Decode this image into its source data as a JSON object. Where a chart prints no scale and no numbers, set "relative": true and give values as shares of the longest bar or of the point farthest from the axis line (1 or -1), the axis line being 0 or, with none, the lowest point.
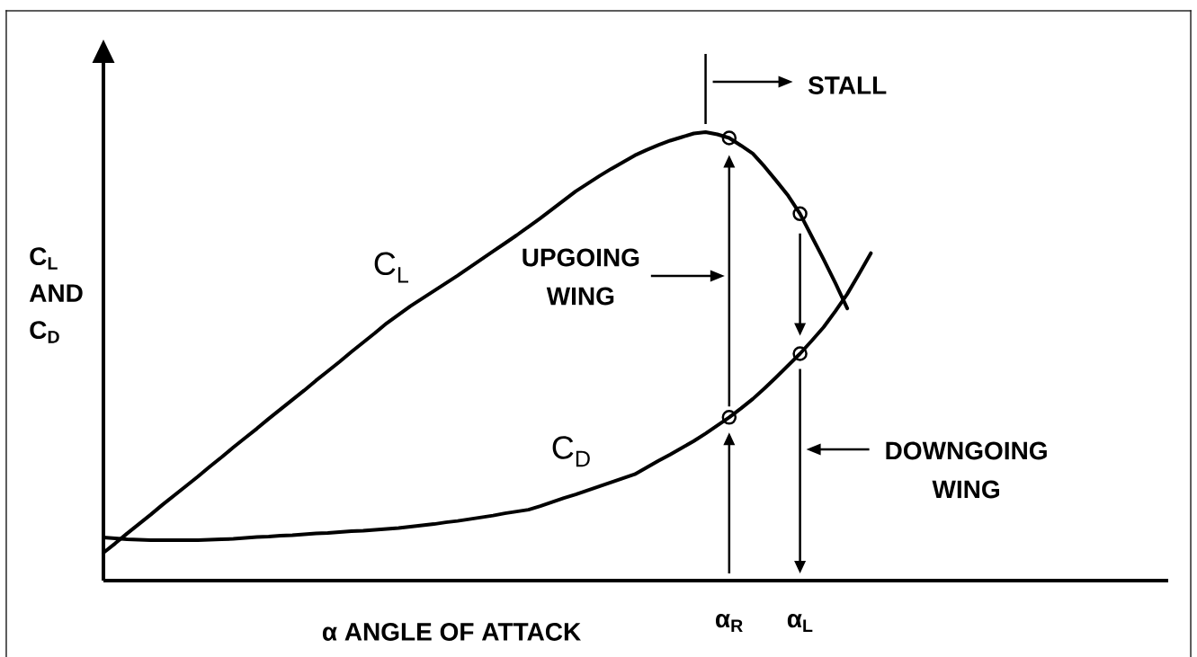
{
  "chart_data": {
    "type": "line",
    "relative": true,
    "xlabel": "α ANGLE OF ATTACK",
    "ylabel": "C$_{L}$ AND C$_{D}$",
    "categories": [
      null,
      null,
      null,
      null,
      null,
      null,
      null,
      null,
      null,
      null,
      null,
      null,
      null,
      null,
      null,
      null,
      null,
      null,
      null,
      null,
      null,
      null,
      null,
      null,
      null,
      null,
      null,
      null,
      null,
      null,
      null,
      null,
      null,
      null,
      null,
      null,
      null,
      null,
      null,
      null,
      null,
      null,
      null,
      null,
      null,
      null,
      null,
      null,
      null,
      null,
      null,
      null,
      null,
      "α$_{R}$",
      null,
      null,
      null,
      null,
      null,
      "α$_{L}$",
      null,
      null,
      null,
      null,
      null,
      null,
      null
    ],
    "series": [
      {
        "name": "C$_{L}$",
        "color": "#000000",
        "values": [
          0.062,
          0.083,
          0.105,
          0.126,
          0.147,
          0.169,
          0.19,
          0.211,
          0.232,
          0.254,
          0.275,
          0.297,
          0.318,
          0.339,
          0.361,
          0.382,
          0.403,
          0.424,
          0.446,
          0.467,
          0.488,
          0.51,
          0.531,
          0.552,
          0.574,
          0.593,
          0.612,
          0.629,
          0.646,
          0.663,
          0.68,
          0.698,
          0.716,
          0.734,
          0.752,
          0.77,
          0.789,
          0.808,
          0.828,
          0.848,
          0.868,
          0.885,
          0.902,
          0.918,
          0.933,
          0.948,
          0.96,
          0.971,
          0.981,
          0.989,
          0.997,
          1,
          0.995,
          0.987,
          0.97,
          0.952,
          0.923,
          0.891,
          0.858,
          0.818,
          0.767,
          0.716,
          0.663,
          0.607,
          null,
          null,
          null
        ]
      },
      {
        "name": "C$_{D}$",
        "color": "#000000",
        "values": [
          0.096,
          0.094,
          0.092,
          0.091,
          0.09,
          0.09,
          0.09,
          0.09,
          0.09,
          0.091,
          0.092,
          0.093,
          0.095,
          0.097,
          0.098,
          0.1,
          0.101,
          0.103,
          0.105,
          0.106,
          0.108,
          0.11,
          0.111,
          0.113,
          0.115,
          0.117,
          0.12,
          0.123,
          0.126,
          0.13,
          0.133,
          0.137,
          0.141,
          0.145,
          0.15,
          0.154,
          0.158,
          0.166,
          0.175,
          0.184,
          0.192,
          0.201,
          0.21,
          0.219,
          0.228,
          0.237,
          0.252,
          0.267,
          0.281,
          0.296,
          0.311,
          0.328,
          0.346,
          0.364,
          0.384,
          0.405,
          0.429,
          0.454,
          0.48,
          0.506,
          0.535,
          0.565,
          0.601,
          0.639,
          0.684,
          0.73,
          null
        ]
      },
      {
        "type": "scatter",
        "color": "#000000",
        "marker": "circle",
        "values": [
          null,
          null,
          null,
          null,
          null,
          null,
          null,
          null,
          null,
          null,
          null,
          null,
          null,
          null,
          null,
          null,
          null,
          null,
          null,
          null,
          null,
          null,
          null,
          null,
          null,
          null,
          null,
          null,
          null,
          null,
          null,
          null,
          null,
          null,
          null,
          null,
          null,
          null,
          null,
          null,
          null,
          null,
          null,
          null,
          null,
          null,
          null,
          null,
          null,
          null,
          null,
          null,
          null,
          0.987,
          null,
          null,
          null,
          null,
          null,
          0.818,
          null,
          null,
          null,
          null,
          null,
          null,
          null
        ]
      },
      {
        "type": "scatter",
        "color": "#000000",
        "marker": "circle",
        "values": [
          null,
          null,
          null,
          null,
          null,
          null,
          null,
          null,
          null,
          null,
          null,
          null,
          null,
          null,
          null,
          null,
          null,
          null,
          null,
          null,
          null,
          null,
          null,
          null,
          null,
          null,
          null,
          null,
          null,
          null,
          null,
          null,
          null,
          null,
          null,
          null,
          null,
          null,
          null,
          null,
          null,
          null,
          null,
          null,
          null,
          null,
          null,
          null,
          null,
          null,
          null,
          null,
          null,
          0.364,
          null,
          null,
          null,
          null,
          null,
          0.506,
          null,
          null,
          null,
          null,
          null,
          null,
          null
        ]
      }
    ],
    "annotations": [
      "STALL",
      "UPGOING WING",
      "DOWNGOING WING"
    ]
  }
}
